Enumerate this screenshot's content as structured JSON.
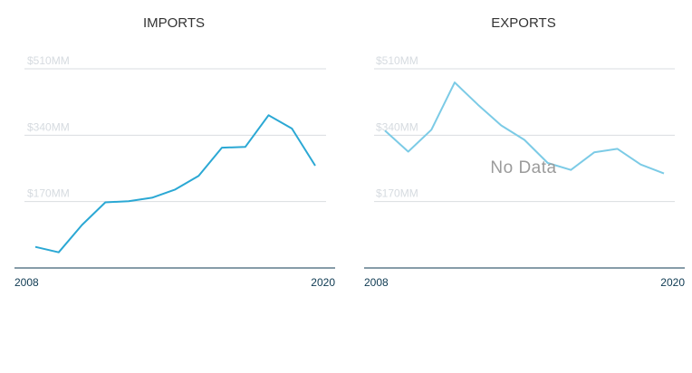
{
  "chart_data": [
    {
      "type": "line",
      "title": "IMPORTS",
      "x": [
        2008,
        2009,
        2010,
        2011,
        2012,
        2013,
        2014,
        2015,
        2016,
        2017,
        2018,
        2019,
        2020
      ],
      "series": [
        {
          "values": [
            54,
            40,
            110,
            168,
            171,
            180,
            201,
            236,
            308,
            310,
            391,
            357,
            262
          ],
          "color": "#2ba8d4"
        }
      ],
      "ylim": [
        0,
        510
      ],
      "yticks": [
        170,
        340,
        510
      ],
      "ytick_labels": [
        "$170MM",
        "$340MM",
        "$510MM"
      ],
      "xtick_labels": [
        "2008",
        "2020"
      ],
      "grid": true
    },
    {
      "type": "line",
      "title": "EXPORTS",
      "x": [
        2008,
        2009,
        2010,
        2011,
        2012,
        2013,
        2014,
        2015,
        2016,
        2017,
        2018,
        2019,
        2020
      ],
      "series": [
        {
          "values": [
            352,
            298,
            354,
            475,
            418,
            365,
            328,
            269,
            251,
            296,
            305,
            265,
            242
          ],
          "color": "#7ccbe6"
        }
      ],
      "ylim": [
        0,
        510
      ],
      "yticks": [
        170,
        340,
        510
      ],
      "ytick_labels": [
        "$170MM",
        "$340MM",
        "$510MM"
      ],
      "xtick_labels": [
        "2008",
        "2020"
      ],
      "grid": true,
      "overlay_text": "No Data"
    }
  ]
}
